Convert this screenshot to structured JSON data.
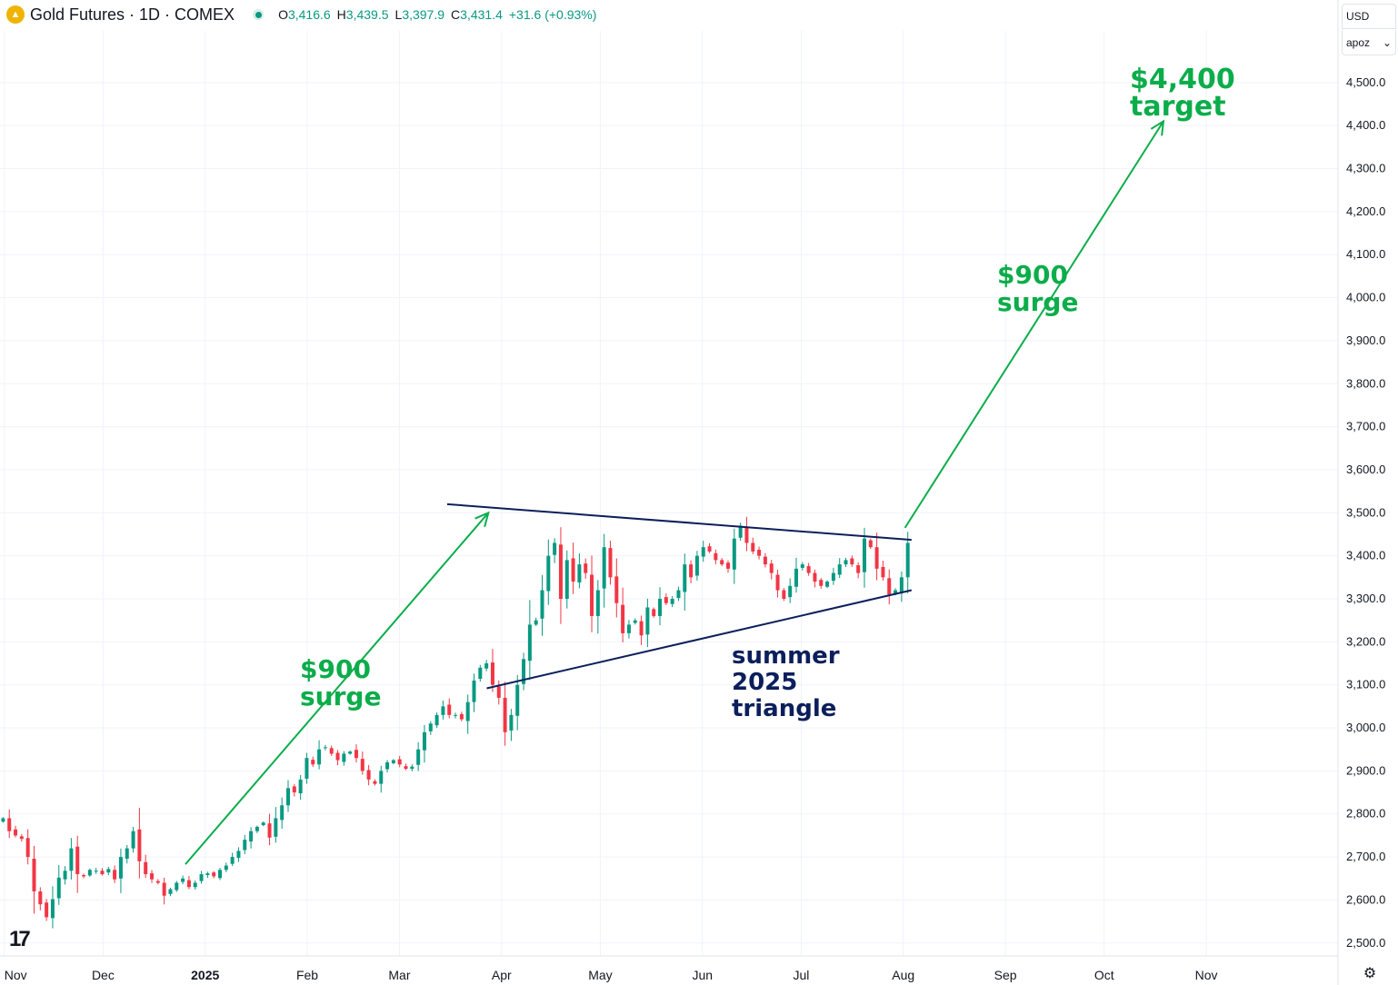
{
  "header": {
    "title": "Gold Futures · 1D · COMEX",
    "open_label": "O",
    "open": "3,416.6",
    "high_label": "H",
    "high": "3,439.5",
    "low_label": "L",
    "low": "3,397.9",
    "close_label": "C",
    "close": "3,431.4",
    "change": "+31.6 (+0.93%)"
  },
  "controls": {
    "currency": "USD",
    "unit": "apoz"
  },
  "colors": {
    "up": "#089981",
    "down": "#f23645",
    "annotation_green": "#0bad4a",
    "triangle": "#0c1f5c",
    "grid": "#f0f3fa"
  },
  "chart_data": {
    "type": "candlestick",
    "title": "Gold Futures · 1D · COMEX",
    "ylim": [
      2470,
      4620
    ],
    "y_ticks": [
      "4,500.0",
      "4,400.0",
      "4,300.0",
      "4,200.0",
      "4,100.0",
      "4,000.0",
      "3,900.0",
      "3,800.0",
      "3,700.0",
      "3,600.0",
      "3,500.0",
      "3,400.0",
      "3,300.0",
      "3,200.0",
      "3,100.0",
      "3,000.0",
      "2,900.0",
      "2,800.0",
      "2,700.0",
      "2,600.0",
      "2,500.0"
    ],
    "x_ticks": [
      {
        "label": "Nov",
        "day": 0
      },
      {
        "label": "Dec",
        "day": 30
      },
      {
        "label": "2025",
        "day": 61
      },
      {
        "label": "Feb",
        "day": 92
      },
      {
        "label": "Mar",
        "day": 120
      },
      {
        "label": "Apr",
        "day": 151
      },
      {
        "label": "May",
        "day": 181
      },
      {
        "label": "Jun",
        "day": 212
      },
      {
        "label": "Jul",
        "day": 242
      },
      {
        "label": "Aug",
        "day": 273
      },
      {
        "label": "Sep",
        "day": 304
      },
      {
        "label": "Oct",
        "day": 334
      },
      {
        "label": "Nov",
        "day": 365
      }
    ],
    "x_range_days": [
      -1.3,
      405
    ],
    "closes": [
      2790,
      2760,
      2750,
      2742,
      2700,
      2620,
      2590,
      2560,
      2602,
      2652,
      2668,
      2720,
      2660,
      2655,
      2670,
      2668,
      2660,
      2672,
      2648,
      2700,
      2720,
      2760,
      2690,
      2660,
      2648,
      2640,
      2610,
      2625,
      2640,
      2650,
      2630,
      2640,
      2660,
      2662,
      2655,
      2670,
      2680,
      2700,
      2714,
      2740,
      2760,
      2770,
      2780,
      2745,
      2790,
      2820,
      2860,
      2850,
      2880,
      2930,
      2915,
      2950,
      2955,
      2940,
      2925,
      2940,
      2945,
      2930,
      2900,
      2880,
      2870,
      2900,
      2920,
      2925,
      2915,
      2905,
      2910,
      2950,
      2990,
      3010,
      3030,
      3050,
      3030,
      3030,
      3020,
      3060,
      3110,
      3140,
      3150,
      3100,
      3070,
      2990,
      3030,
      3100,
      3160,
      3240,
      3250,
      3320,
      3400,
      3430,
      3300,
      3390,
      3340,
      3380,
      3360,
      3260,
      3320,
      3420,
      3350,
      3290,
      3220,
      3240,
      3250,
      3215,
      3280,
      3260,
      3300,
      3290,
      3300,
      3320,
      3380,
      3350,
      3400,
      3420,
      3410,
      3390,
      3380,
      3370,
      3440,
      3470,
      3430,
      3410,
      3400,
      3380,
      3360,
      3320,
      3300,
      3330,
      3370,
      3380,
      3360,
      3340,
      3330,
      3340,
      3360,
      3380,
      3390,
      3380,
      3360,
      3440,
      3420,
      3370,
      3350,
      3310,
      3320,
      3350,
      3430
    ],
    "triangle": {
      "upper": [
        [
          134.5,
          3520
        ],
        [
          275.5,
          3437
        ]
      ],
      "lower": [
        [
          146.5,
          3092
        ],
        [
          275.5,
          3320
        ]
      ]
    },
    "arrows": [
      {
        "from": [
          55,
          2683
        ],
        "to": [
          147,
          3500
        ]
      },
      {
        "from": [
          273.5,
          3465
        ],
        "to": [
          352,
          4410
        ]
      }
    ],
    "annotations": [
      {
        "lines": [
          "$900",
          "surge"
        ],
        "color": "green"
      },
      {
        "lines": [
          "$900",
          "surge"
        ],
        "color": "green"
      },
      {
        "lines": [
          "$4,400",
          "target"
        ],
        "color": "green"
      },
      {
        "lines": [
          "summer",
          "2025",
          "triangle"
        ],
        "color": "navy"
      }
    ]
  }
}
